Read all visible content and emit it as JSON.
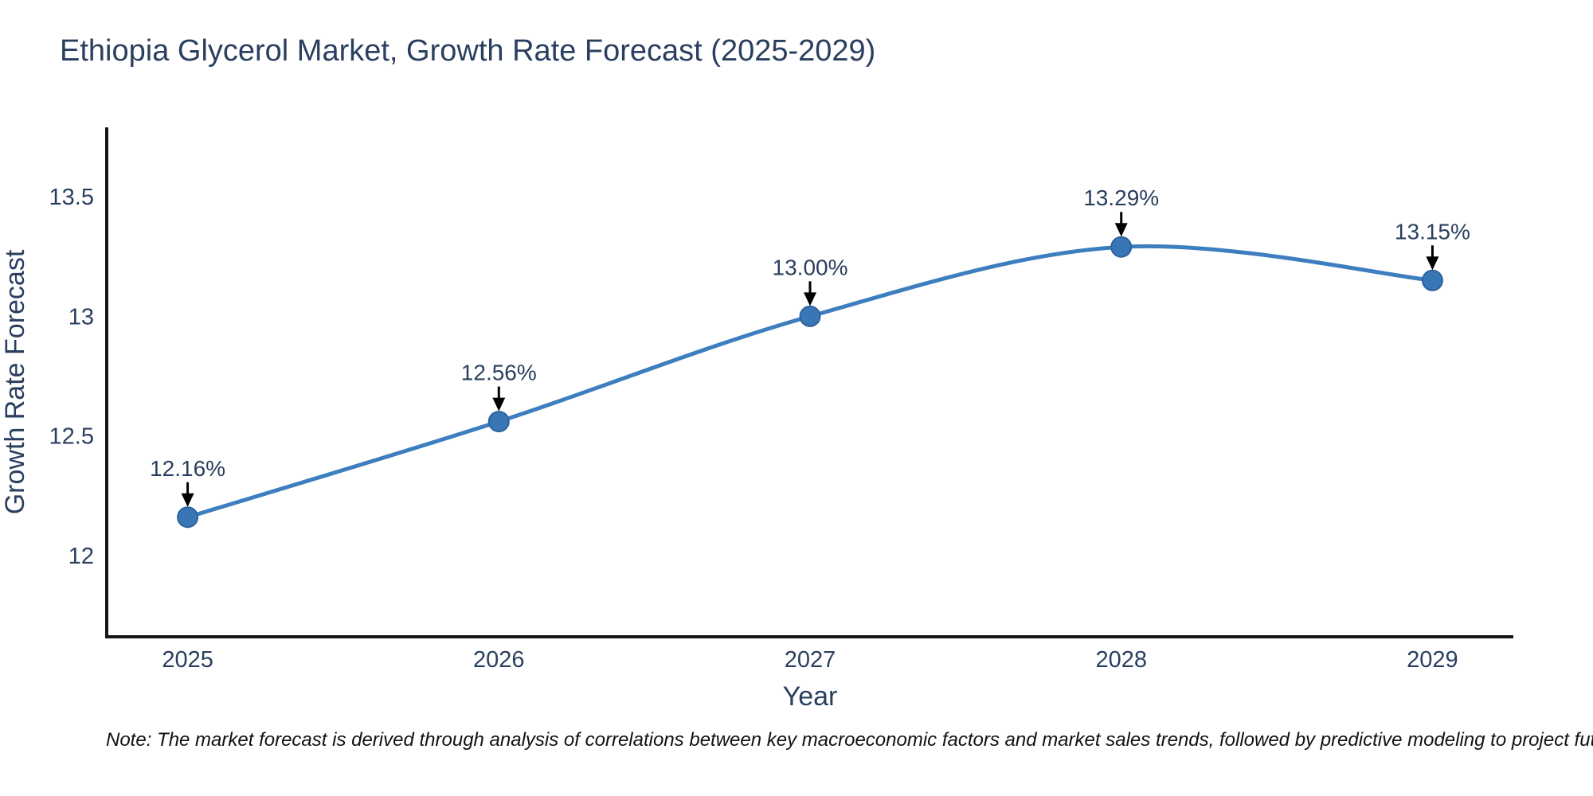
{
  "chart_data": {
    "type": "line",
    "title": "Ethiopia Glycerol Market, Growth Rate Forecast (2025-2029)",
    "xlabel": "Year",
    "ylabel": "Growth Rate Forecast",
    "line_shape": "spline",
    "grid": false,
    "legend_position": "none",
    "x": [
      2025,
      2026,
      2027,
      2028,
      2029
    ],
    "values": [
      12.16,
      12.56,
      13.0,
      13.29,
      13.15
    ],
    "point_labels": [
      "12.16%",
      "12.56%",
      "13.00%",
      "13.29%",
      "13.15%"
    ],
    "xticks": [
      2025,
      2026,
      2027,
      2028,
      2029
    ],
    "xtick_labels": [
      "2025",
      "2026",
      "2027",
      "2028",
      "2029"
    ],
    "yticks": [
      12,
      12.5,
      13,
      13.5
    ],
    "ytick_labels": [
      "12",
      "12.5",
      "13",
      "13.5"
    ],
    "xlim": [
      2024.74,
      2029.26
    ],
    "ylim": [
      11.66,
      13.79
    ],
    "colors": {
      "line": "#3d7ebf",
      "marker_fill": "#3876b6",
      "marker_edge": "#2d639c",
      "text": "#2a3f5f",
      "annotation_text": "#2a3f5f",
      "arrow": "#000000",
      "axis_line": "#161616",
      "background": "#ffffff"
    }
  },
  "footnote": "Note: The market forecast is derived through analysis of correlations between key macroeconomic factors and market sales trends, followed by predictive modeling to project future sal"
}
